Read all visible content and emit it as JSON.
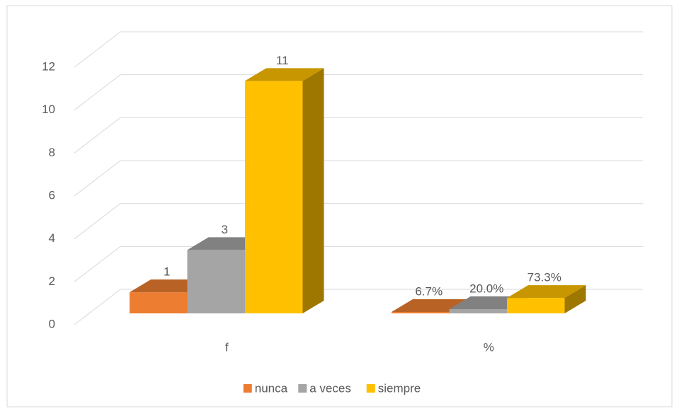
{
  "chart_data": {
    "type": "bar3d",
    "categories": [
      "f",
      "%"
    ],
    "series": [
      {
        "name": "nunca",
        "color": "#ed7d31",
        "values": [
          1,
          0.067
        ],
        "value_labels": [
          "1",
          "6.7%"
        ]
      },
      {
        "name": "a veces",
        "color": "#a5a5a5",
        "values": [
          3,
          0.2
        ],
        "value_labels": [
          "3",
          "20.0%"
        ]
      },
      {
        "name": "siempre",
        "color": "#ffc000",
        "values": [
          11,
          0.733
        ],
        "value_labels": [
          "11",
          "73.3%"
        ]
      }
    ],
    "ylim": [
      0,
      12
    ],
    "yticks": [
      0,
      2,
      4,
      6,
      8,
      10,
      12
    ],
    "grid": true,
    "legend": "bottom"
  }
}
